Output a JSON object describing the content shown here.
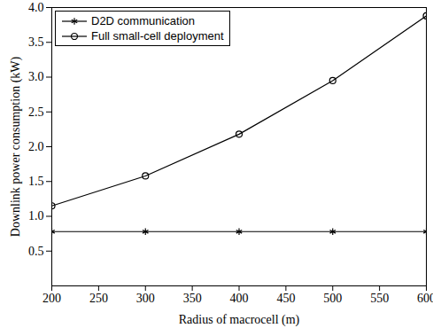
{
  "chart_data": {
    "type": "line",
    "x_label": "Radius of macrocell (m)",
    "y_label": "Downlink power consumption (kW)",
    "x": [
      200,
      300,
      400,
      500,
      600
    ],
    "series": [
      {
        "name": "D2D communication",
        "color": "#000000",
        "marker": "asterisk",
        "line_style": "solid",
        "values": [
          0.78,
          0.78,
          0.78,
          0.78,
          0.78
        ]
      },
      {
        "name": "Full small-cell deployment",
        "color": "#000000",
        "marker": "circle",
        "line_style": "solid",
        "values": [
          1.15,
          1.58,
          2.18,
          2.95,
          3.88
        ]
      }
    ],
    "xlim": [
      200,
      600
    ],
    "xticks": [
      200,
      250,
      300,
      350,
      400,
      450,
      500,
      550,
      600
    ],
    "ylim": [
      0,
      4
    ],
    "yticks": [
      0.5,
      {
        "value": 1,
        "label": "1.0"
      },
      1.5,
      {
        "value": 2,
        "label": "2.0"
      },
      2.5,
      {
        "value": 3,
        "label": "3.0"
      },
      3.5,
      {
        "value": 4,
        "label": "4.0"
      }
    ],
    "grid": false,
    "legend": "upper left"
  }
}
